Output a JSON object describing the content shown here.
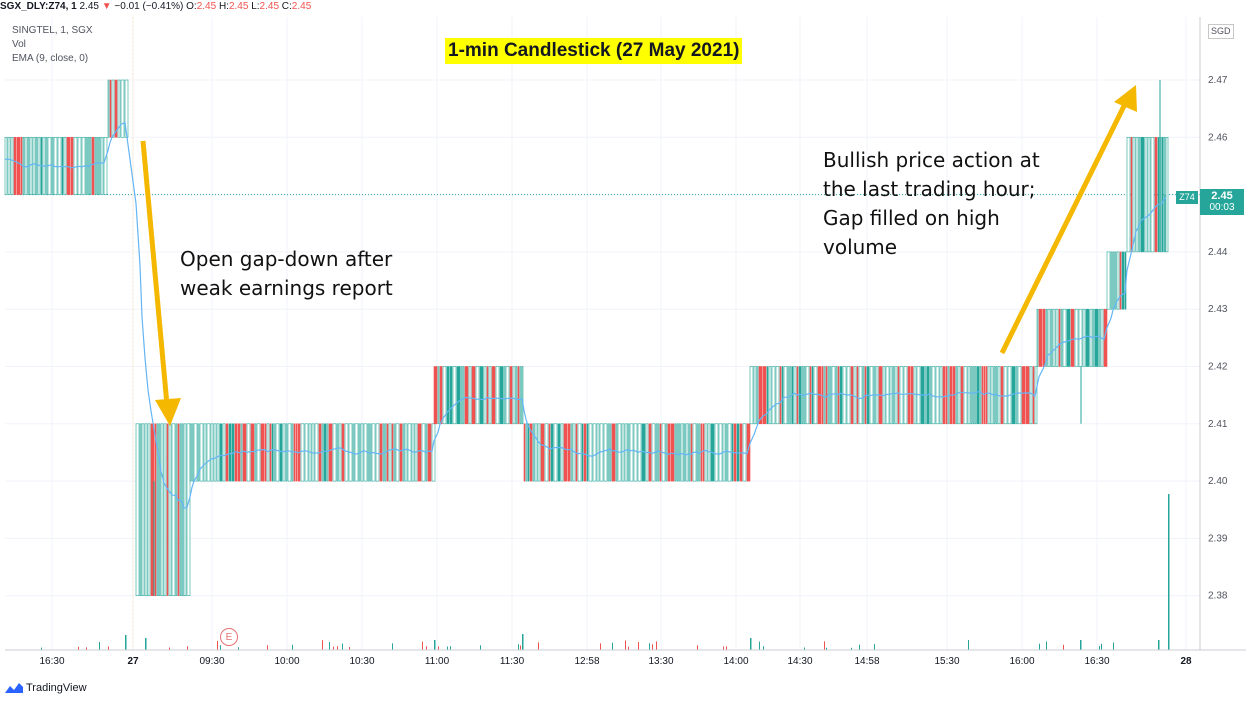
{
  "header": {
    "symbol": "SGX_DLY:Z74, 1",
    "last": "2.45",
    "arrow": "▼",
    "change": "−0.01 (−0.41%)",
    "o_label": "O:",
    "o_val": "2.45",
    "h_label": "H:",
    "h_val": "2.45",
    "l_label": "L:",
    "l_val": "2.45",
    "c_label": "C:",
    "c_val": "2.45"
  },
  "legend": {
    "line1": "SINGTEL, 1, SGX",
    "line2": "Vol",
    "line3": "EMA (9, close, 0)"
  },
  "currency": "SGD",
  "price_tag": {
    "symbol": "Z74",
    "price": "2.45",
    "timer": "00:03"
  },
  "earnings_marker": "E",
  "annotations": {
    "left": [
      "Open gap-down after",
      "weak earnings report"
    ],
    "right": [
      "Bullish price action at",
      "the last trading hour;",
      "Gap filled on high",
      "volume"
    ]
  },
  "branding": "TradingView",
  "colors": {
    "up": "#26a69a",
    "down": "#ef5350",
    "ema": "#64b5f6",
    "arrow": "#f5b800",
    "title_bg": "#ffff00"
  },
  "chart_data": {
    "type": "candlestick",
    "title": "1-min Candlestick (27 May 2021)",
    "ylim": [
      2.372,
      2.48
    ],
    "y_ticks": [
      2.38,
      2.39,
      2.4,
      2.41,
      2.42,
      2.43,
      2.44,
      2.45,
      2.46,
      2.47
    ],
    "y_tick_labels": [
      "2.38",
      "2.39",
      "2.40",
      "2.41",
      "2.42",
      "2.43",
      "2.44",
      "2.45",
      "2.46",
      "2.47"
    ],
    "x_tick_labels": [
      "16:30",
      "27",
      "09:30",
      "10:00",
      "10:30",
      "11:00",
      "11:30",
      "12:58",
      "13:30",
      "14:00",
      "14:30",
      "14:58",
      "15:30",
      "16:00",
      "16:30",
      "28"
    ],
    "price_levels": [
      {
        "from": "prev 16:30",
        "to": "prev close",
        "low": 2.45,
        "high": 2.46
      },
      {
        "from": "prev close",
        "to": "27 open",
        "low": 2.46,
        "high": 2.47
      },
      {
        "from": "09:00",
        "to": "09:30",
        "low": 2.38,
        "high": 2.41
      },
      {
        "from": "09:30",
        "to": "11:00",
        "low": 2.4,
        "high": 2.41
      },
      {
        "from": "11:00",
        "to": "11:30",
        "low": 2.41,
        "high": 2.42
      },
      {
        "from": "11:30",
        "to": "14:00",
        "low": 2.4,
        "high": 2.41
      },
      {
        "from": "14:00",
        "to": "16:00",
        "low": 2.41,
        "high": 2.42
      },
      {
        "from": "16:00",
        "to": "16:30",
        "low": 2.42,
        "high": 2.43
      },
      {
        "from": "16:30",
        "to": "16:45",
        "low": 2.43,
        "high": 2.44
      },
      {
        "from": "16:45",
        "to": "17:00",
        "low": 2.44,
        "high": 2.46
      }
    ],
    "last_price": 2.45,
    "grid": true
  }
}
